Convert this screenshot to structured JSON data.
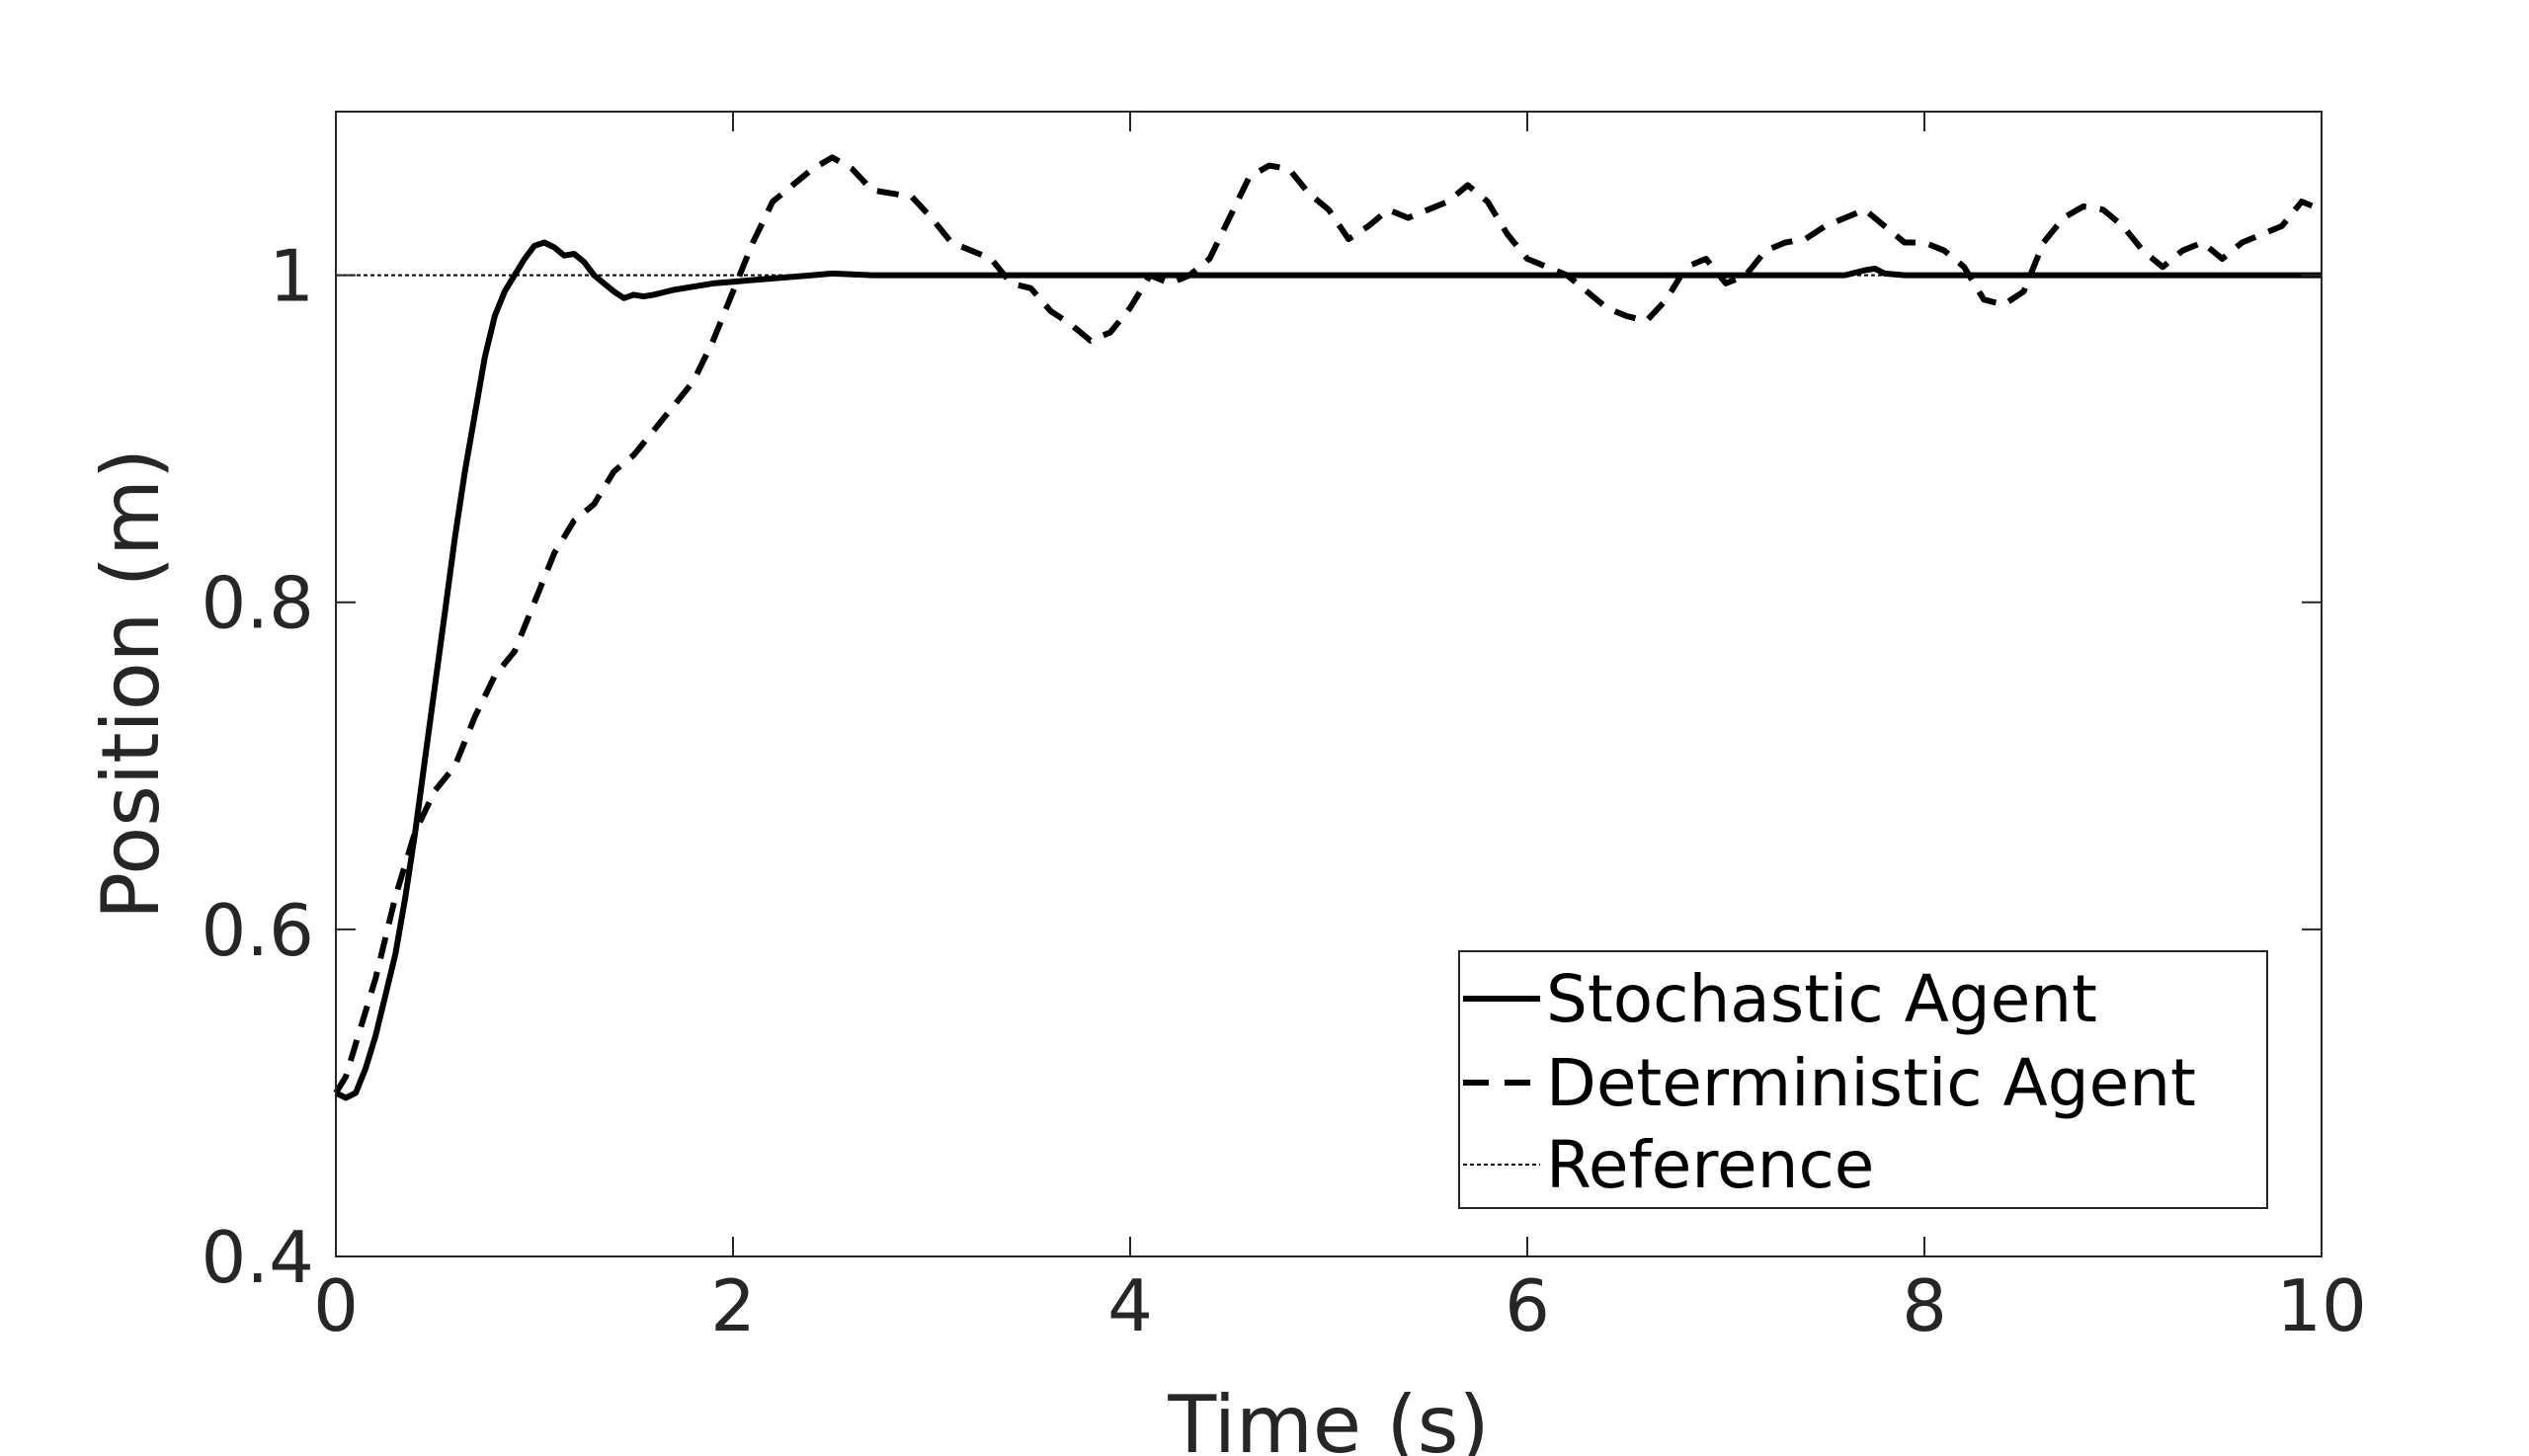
{
  "chart_data": {
    "type": "line",
    "title": "",
    "xlabel": "Time (s)",
    "ylabel": "Position (m)",
    "xlim": [
      0,
      10
    ],
    "ylim": [
      0.4,
      1.1
    ],
    "xticks": [
      0,
      2,
      4,
      6,
      8,
      10
    ],
    "xtick_labels": [
      "0",
      "2",
      "4",
      "6",
      "8",
      "10"
    ],
    "yticks": [
      0.4,
      0.6,
      0.8,
      1.0
    ],
    "ytick_labels": [
      "0.4",
      "0.6",
      "0.8",
      "1"
    ],
    "grid": false,
    "legend_position": "bottom-right",
    "series": [
      {
        "name": "Stochastic Agent",
        "style": "solid",
        "color": "#000000",
        "x": [
          0.0,
          0.05,
          0.1,
          0.15,
          0.2,
          0.25,
          0.3,
          0.35,
          0.4,
          0.45,
          0.5,
          0.55,
          0.6,
          0.65,
          0.7,
          0.75,
          0.8,
          0.85,
          0.9,
          0.95,
          1.0,
          1.05,
          1.1,
          1.15,
          1.2,
          1.25,
          1.3,
          1.35,
          1.4,
          1.45,
          1.5,
          1.55,
          1.6,
          1.7,
          1.8,
          1.9,
          2.0,
          2.1,
          2.2,
          2.3,
          2.4,
          2.5,
          2.7,
          3.0,
          3.5,
          4.0,
          5.0,
          6.0,
          7.0,
          7.6,
          7.7,
          7.75,
          7.8,
          7.9,
          8.5,
          9.0,
          10.0
        ],
        "y": [
          0.5,
          0.497,
          0.5,
          0.515,
          0.535,
          0.56,
          0.585,
          0.62,
          0.66,
          0.705,
          0.75,
          0.795,
          0.84,
          0.88,
          0.915,
          0.95,
          0.975,
          0.99,
          1.0,
          1.01,
          1.018,
          1.02,
          1.017,
          1.012,
          1.013,
          1.008,
          1.0,
          0.995,
          0.99,
          0.986,
          0.988,
          0.987,
          0.988,
          0.991,
          0.993,
          0.995,
          0.996,
          0.997,
          0.998,
          0.999,
          1.0,
          1.001,
          1.0,
          1.0,
          1.0,
          1.0,
          1.0,
          1.0,
          1.0,
          1.0,
          1.003,
          1.004,
          1.001,
          1.0,
          1.0,
          1.0,
          1.0
        ]
      },
      {
        "name": "Deterministic Agent",
        "style": "dashed",
        "color": "#000000",
        "x": [
          0.0,
          0.05,
          0.1,
          0.2,
          0.3,
          0.4,
          0.5,
          0.6,
          0.7,
          0.8,
          0.9,
          1.0,
          1.1,
          1.2,
          1.3,
          1.4,
          1.5,
          1.6,
          1.7,
          1.8,
          1.9,
          2.0,
          2.1,
          2.2,
          2.3,
          2.4,
          2.5,
          2.6,
          2.7,
          2.8,
          2.9,
          3.0,
          3.1,
          3.2,
          3.3,
          3.4,
          3.5,
          3.6,
          3.7,
          3.8,
          3.9,
          4.0,
          4.1,
          4.2,
          4.3,
          4.4,
          4.5,
          4.6,
          4.7,
          4.8,
          4.9,
          5.0,
          5.1,
          5.2,
          5.3,
          5.4,
          5.5,
          5.6,
          5.7,
          5.8,
          5.9,
          6.0,
          6.1,
          6.2,
          6.3,
          6.4,
          6.5,
          6.6,
          6.7,
          6.8,
          6.9,
          7.0,
          7.1,
          7.2,
          7.3,
          7.4,
          7.5,
          7.6,
          7.7,
          7.8,
          7.9,
          8.0,
          8.1,
          8.2,
          8.3,
          8.4,
          8.5,
          8.6,
          8.7,
          8.8,
          8.9,
          9.0,
          9.1,
          9.2,
          9.3,
          9.4,
          9.5,
          9.6,
          9.7,
          9.8,
          9.9,
          10.0
        ],
        "y": [
          0.5,
          0.51,
          0.53,
          0.57,
          0.62,
          0.66,
          0.685,
          0.7,
          0.73,
          0.755,
          0.77,
          0.8,
          0.83,
          0.85,
          0.86,
          0.88,
          0.89,
          0.905,
          0.92,
          0.935,
          0.96,
          0.99,
          1.02,
          1.045,
          1.055,
          1.065,
          1.072,
          1.065,
          1.052,
          1.05,
          1.048,
          1.035,
          1.02,
          1.015,
          1.01,
          0.995,
          0.992,
          0.978,
          0.97,
          0.96,
          0.965,
          0.98,
          1.0,
          0.995,
          1.0,
          1.01,
          1.035,
          1.06,
          1.067,
          1.065,
          1.05,
          1.04,
          1.022,
          1.03,
          1.04,
          1.035,
          1.04,
          1.045,
          1.055,
          1.045,
          1.025,
          1.01,
          1.005,
          1.0,
          0.99,
          0.98,
          0.975,
          0.972,
          0.985,
          1.005,
          1.01,
          0.995,
          1.0,
          1.015,
          1.02,
          1.022,
          1.03,
          1.035,
          1.04,
          1.03,
          1.02,
          1.02,
          1.015,
          1.005,
          0.985,
          0.982,
          0.99,
          1.02,
          1.035,
          1.042,
          1.04,
          1.03,
          1.015,
          1.005,
          1.015,
          1.02,
          1.01,
          1.02,
          1.025,
          1.03,
          1.045,
          1.04
        ]
      },
      {
        "name": "Reference",
        "style": "dotted",
        "color": "#000000",
        "x": [
          0,
          10
        ],
        "y": [
          1.0,
          1.0
        ]
      }
    ]
  }
}
